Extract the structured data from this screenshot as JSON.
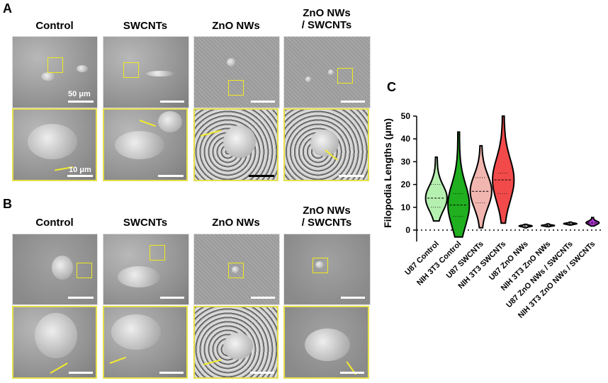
{
  "panels": {
    "A": {
      "label": "A",
      "columns": [
        "Control",
        "SWCNTs",
        "ZnO NWs",
        "ZnO NWs\n/ SWCNTs"
      ],
      "scale_top": "50 μm",
      "scale_zoom": "10 μm"
    },
    "B": {
      "label": "B",
      "columns": [
        "Control",
        "SWCNTs",
        "ZnO NWs",
        "ZnO NWs\n/ SWCNTs"
      ]
    },
    "C": {
      "label": "C"
    }
  },
  "chart_data": {
    "type": "violin",
    "ylabel": "Filopodia Lengths (μm)",
    "ylim": [
      0,
      50
    ],
    "yticks": [
      0,
      10,
      20,
      30,
      40,
      50
    ],
    "categories": [
      "U87 Control",
      "NIH 3T3 Control",
      "U87 SWCNTs",
      "NIH 3T3 SWCNTs",
      "U87 ZnO NWs",
      "NIH 3T3 ZnO NWs",
      "U87 ZnO NWs / SWCNTs",
      "NIH 3T3 ZnO NWs / SWCNTs"
    ],
    "series": [
      {
        "min": 4,
        "max": 32,
        "median": 14,
        "q1": 10,
        "q3": 20,
        "color": "#b6f0b0"
      },
      {
        "min": -3,
        "max": 43,
        "median": 11,
        "q1": 6,
        "q3": 16,
        "color": "#1faf1f"
      },
      {
        "min": 1,
        "max": 37,
        "median": 17,
        "q1": 12,
        "q3": 23,
        "color": "#f2b6b0"
      },
      {
        "min": 3,
        "max": 50,
        "median": 22,
        "q1": 16,
        "q3": 25,
        "color": "#f24a4a"
      },
      {
        "min": 1,
        "max": 2.5,
        "median": 1.8,
        "q1": 1.6,
        "q3": 2,
        "color": "#f2f2f2"
      },
      {
        "min": 1.5,
        "max": 2.7,
        "median": 2,
        "q1": 1.8,
        "q3": 2.2,
        "color": "#f2f2f2"
      },
      {
        "min": 2.2,
        "max": 3.5,
        "median": 2.8,
        "q1": 2.6,
        "q3": 3,
        "color": "#f2f2f2"
      },
      {
        "min": 1.8,
        "max": 5.5,
        "median": 3.2,
        "q1": 2.8,
        "q3": 4,
        "color": "#b338d9"
      }
    ]
  }
}
